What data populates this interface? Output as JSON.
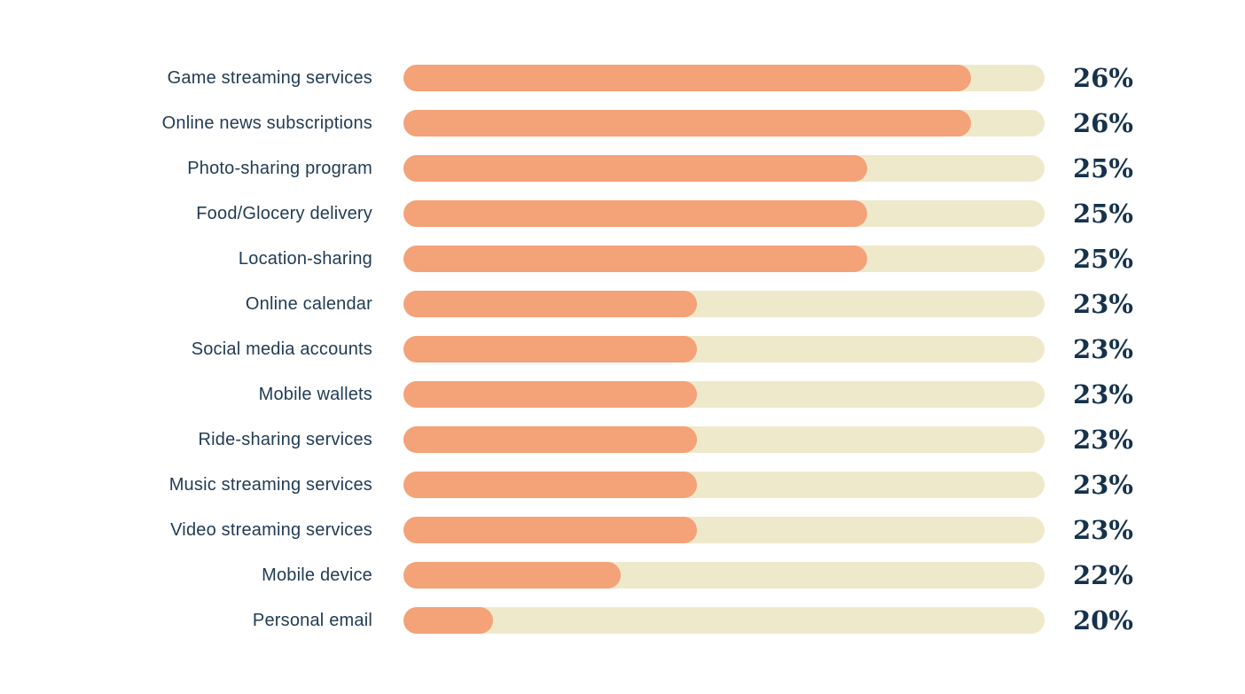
{
  "chart_data": {
    "type": "bar",
    "orientation": "horizontal",
    "title": "",
    "xlabel": "",
    "ylabel": "",
    "legend": false,
    "grid": false,
    "categories": [
      "Game streaming services",
      "Online news subscriptions",
      "Photo-sharing program",
      "Food/Glocery delivery",
      "Location-sharing",
      "Online calendar",
      "Social media accounts",
      "Mobile wallets",
      "Ride-sharing services",
      "Music streaming services",
      "Video streaming services",
      "Mobile device",
      "Personal email"
    ],
    "values": [
      26,
      26,
      25,
      25,
      25,
      23,
      23,
      23,
      23,
      23,
      23,
      22,
      20
    ],
    "rows": [
      {
        "label": "Game streaming services",
        "value": 26,
        "value_label": "26%",
        "fill_pct": 88.5
      },
      {
        "label": "Online news subscriptions",
        "value": 26,
        "value_label": "26%",
        "fill_pct": 88.5
      },
      {
        "label": "Photo-sharing program",
        "value": 25,
        "value_label": "25%",
        "fill_pct": 72.3
      },
      {
        "label": "Food/Glocery delivery",
        "value": 25,
        "value_label": "25%",
        "fill_pct": 72.3
      },
      {
        "label": "Location-sharing",
        "value": 25,
        "value_label": "25%",
        "fill_pct": 72.3
      },
      {
        "label": "Online calendar",
        "value": 23,
        "value_label": "23%",
        "fill_pct": 45.8
      },
      {
        "label": "Social media accounts",
        "value": 23,
        "value_label": "23%",
        "fill_pct": 45.8
      },
      {
        "label": "Mobile wallets",
        "value": 23,
        "value_label": "23%",
        "fill_pct": 45.8
      },
      {
        "label": "Ride-sharing services",
        "value": 23,
        "value_label": "23%",
        "fill_pct": 45.8
      },
      {
        "label": "Music streaming services",
        "value": 23,
        "value_label": "23%",
        "fill_pct": 45.8
      },
      {
        "label": "Video streaming services",
        "value": 23,
        "value_label": "23%",
        "fill_pct": 45.8
      },
      {
        "label": "Mobile device",
        "value": 22,
        "value_label": "22%",
        "fill_pct": 33.9
      },
      {
        "label": "Personal email",
        "value": 20,
        "value_label": "20%",
        "fill_pct": 14.0
      }
    ],
    "colors": {
      "bar_fill": "#F4A278",
      "bar_track": "#EFE9CC",
      "label_text": "#223C55",
      "value_text": "#16324C",
      "background": "#FFFFFF"
    }
  }
}
